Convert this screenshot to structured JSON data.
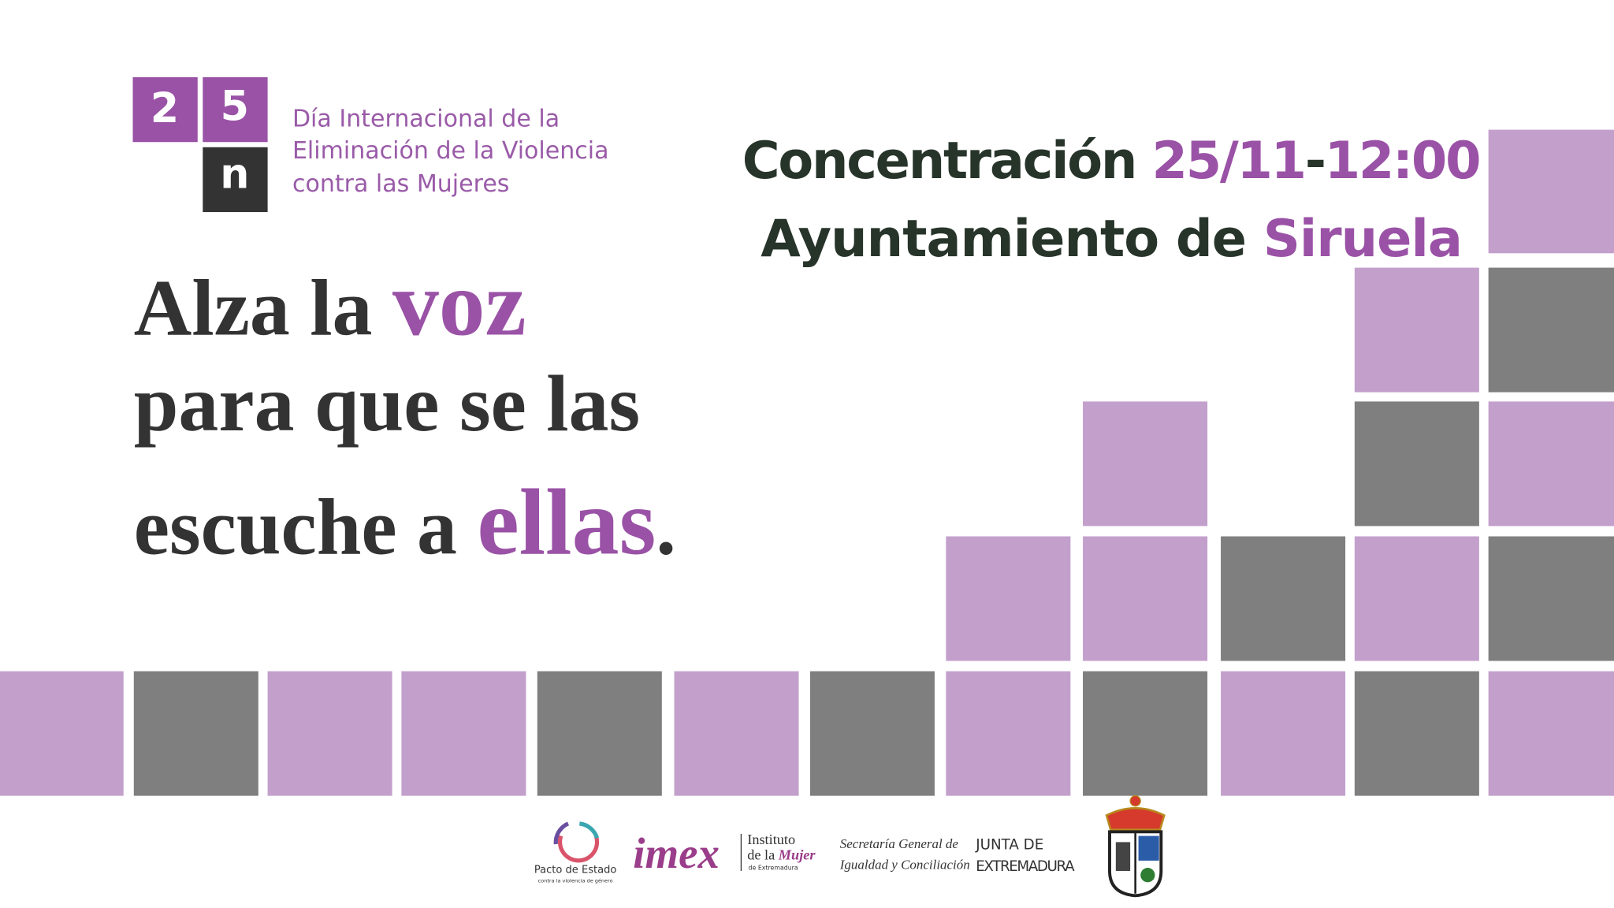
{
  "logo": {
    "digits": [
      "2",
      "5",
      "n"
    ],
    "lines": [
      "Día Internacional de la",
      "Eliminación de la Violencia",
      "contra las Mujeres"
    ]
  },
  "event": {
    "line1": [
      "Concentración ",
      "25/11",
      "-",
      "12:00"
    ],
    "line2": [
      "Ayuntamiento de ",
      "Siruela"
    ]
  },
  "headline": {
    "line1": [
      "Alza la ",
      "voz"
    ],
    "line2": "para que se las",
    "line3": [
      "escuche a ",
      "ellas",
      "."
    ]
  },
  "footer": {
    "pacto": [
      "Pacto de Estado",
      "contra la violencia de género"
    ],
    "imex": [
      "imex",
      "Instituto",
      "de la ",
      "Mujer",
      "de Extremadura"
    ],
    "secretaria": [
      "Secretaría General de",
      "Igualdad y Conciliación"
    ],
    "junta": [
      "JUNTA DE",
      "EXTREMADURA"
    ]
  }
}
